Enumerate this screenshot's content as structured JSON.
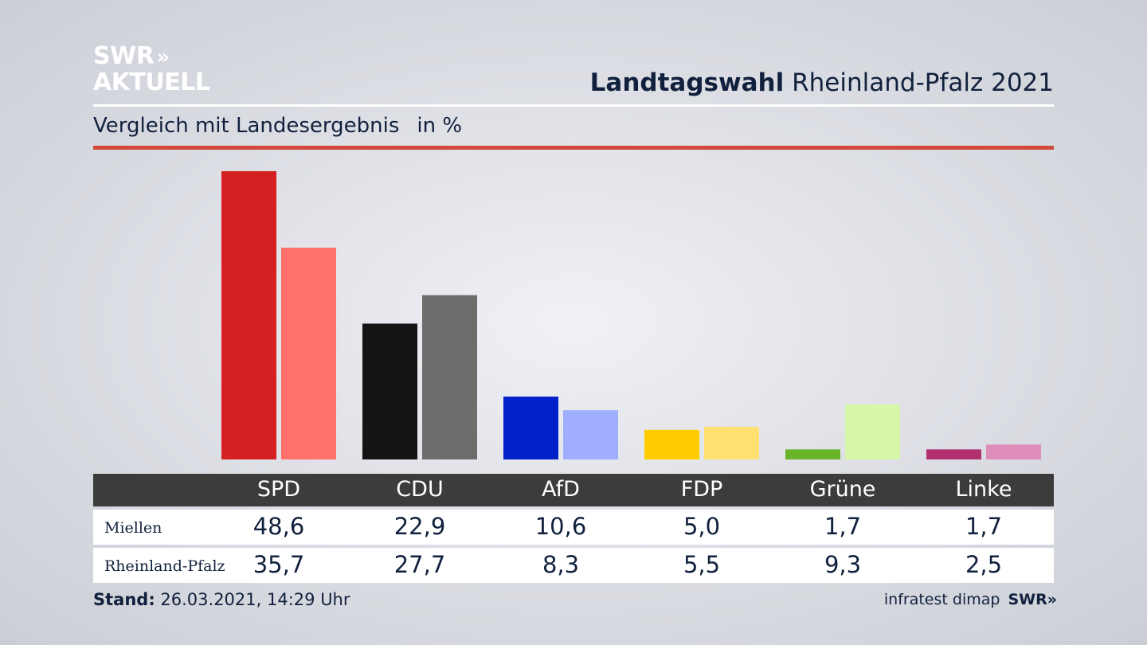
{
  "header": {
    "logo_line1": "SWR",
    "logo_chevrons": "»",
    "logo_line2": "AKTUELL",
    "title_bold": "Landtagswahl",
    "title_rest": "Rheinland-Pfalz 2021",
    "subtitle": "Vergleich mit Landesergebnis",
    "unit": "in %"
  },
  "chart_data": {
    "type": "bar",
    "categories": [
      "SPD",
      "CDU",
      "AfD",
      "FDP",
      "Grüne",
      "Linke"
    ],
    "series": [
      {
        "name": "Miellen",
        "values": [
          48.6,
          22.9,
          10.6,
          5.0,
          1.7,
          1.7
        ]
      },
      {
        "name": "Rheinland-Pfalz",
        "values": [
          35.7,
          27.7,
          8.3,
          5.5,
          9.3,
          2.5
        ]
      }
    ],
    "ylim": [
      0,
      48.6
    ],
    "colors": {
      "Miellen": [
        "#d42020",
        "#141414",
        "#0020c8",
        "#ffcc00",
        "#6ab42a",
        "#b0306e"
      ],
      "Rheinland-Pfalz": [
        "#ff716a",
        "#6e6d6b",
        "#a0aeff",
        "#ffe070",
        "#d6f6aa",
        "#e08cba"
      ]
    }
  },
  "table": {
    "headers": [
      "SPD",
      "CDU",
      "AfD",
      "FDP",
      "Grüne",
      "Linke"
    ],
    "rows": [
      {
        "label": "Miellen",
        "values": [
          "48,6",
          "22,9",
          "10,6",
          "5,0",
          "1,7",
          "1,7"
        ]
      },
      {
        "label": "Rheinland-Pfalz",
        "values": [
          "35,7",
          "27,7",
          "8,3",
          "5,5",
          "9,3",
          "2,5"
        ]
      }
    ]
  },
  "footer": {
    "stand_label": "Stand:",
    "stand_value": "26.03.2021, 14:29 Uhr",
    "source": "infratest dimap",
    "brand": "SWR",
    "brand_chevrons": "»"
  }
}
